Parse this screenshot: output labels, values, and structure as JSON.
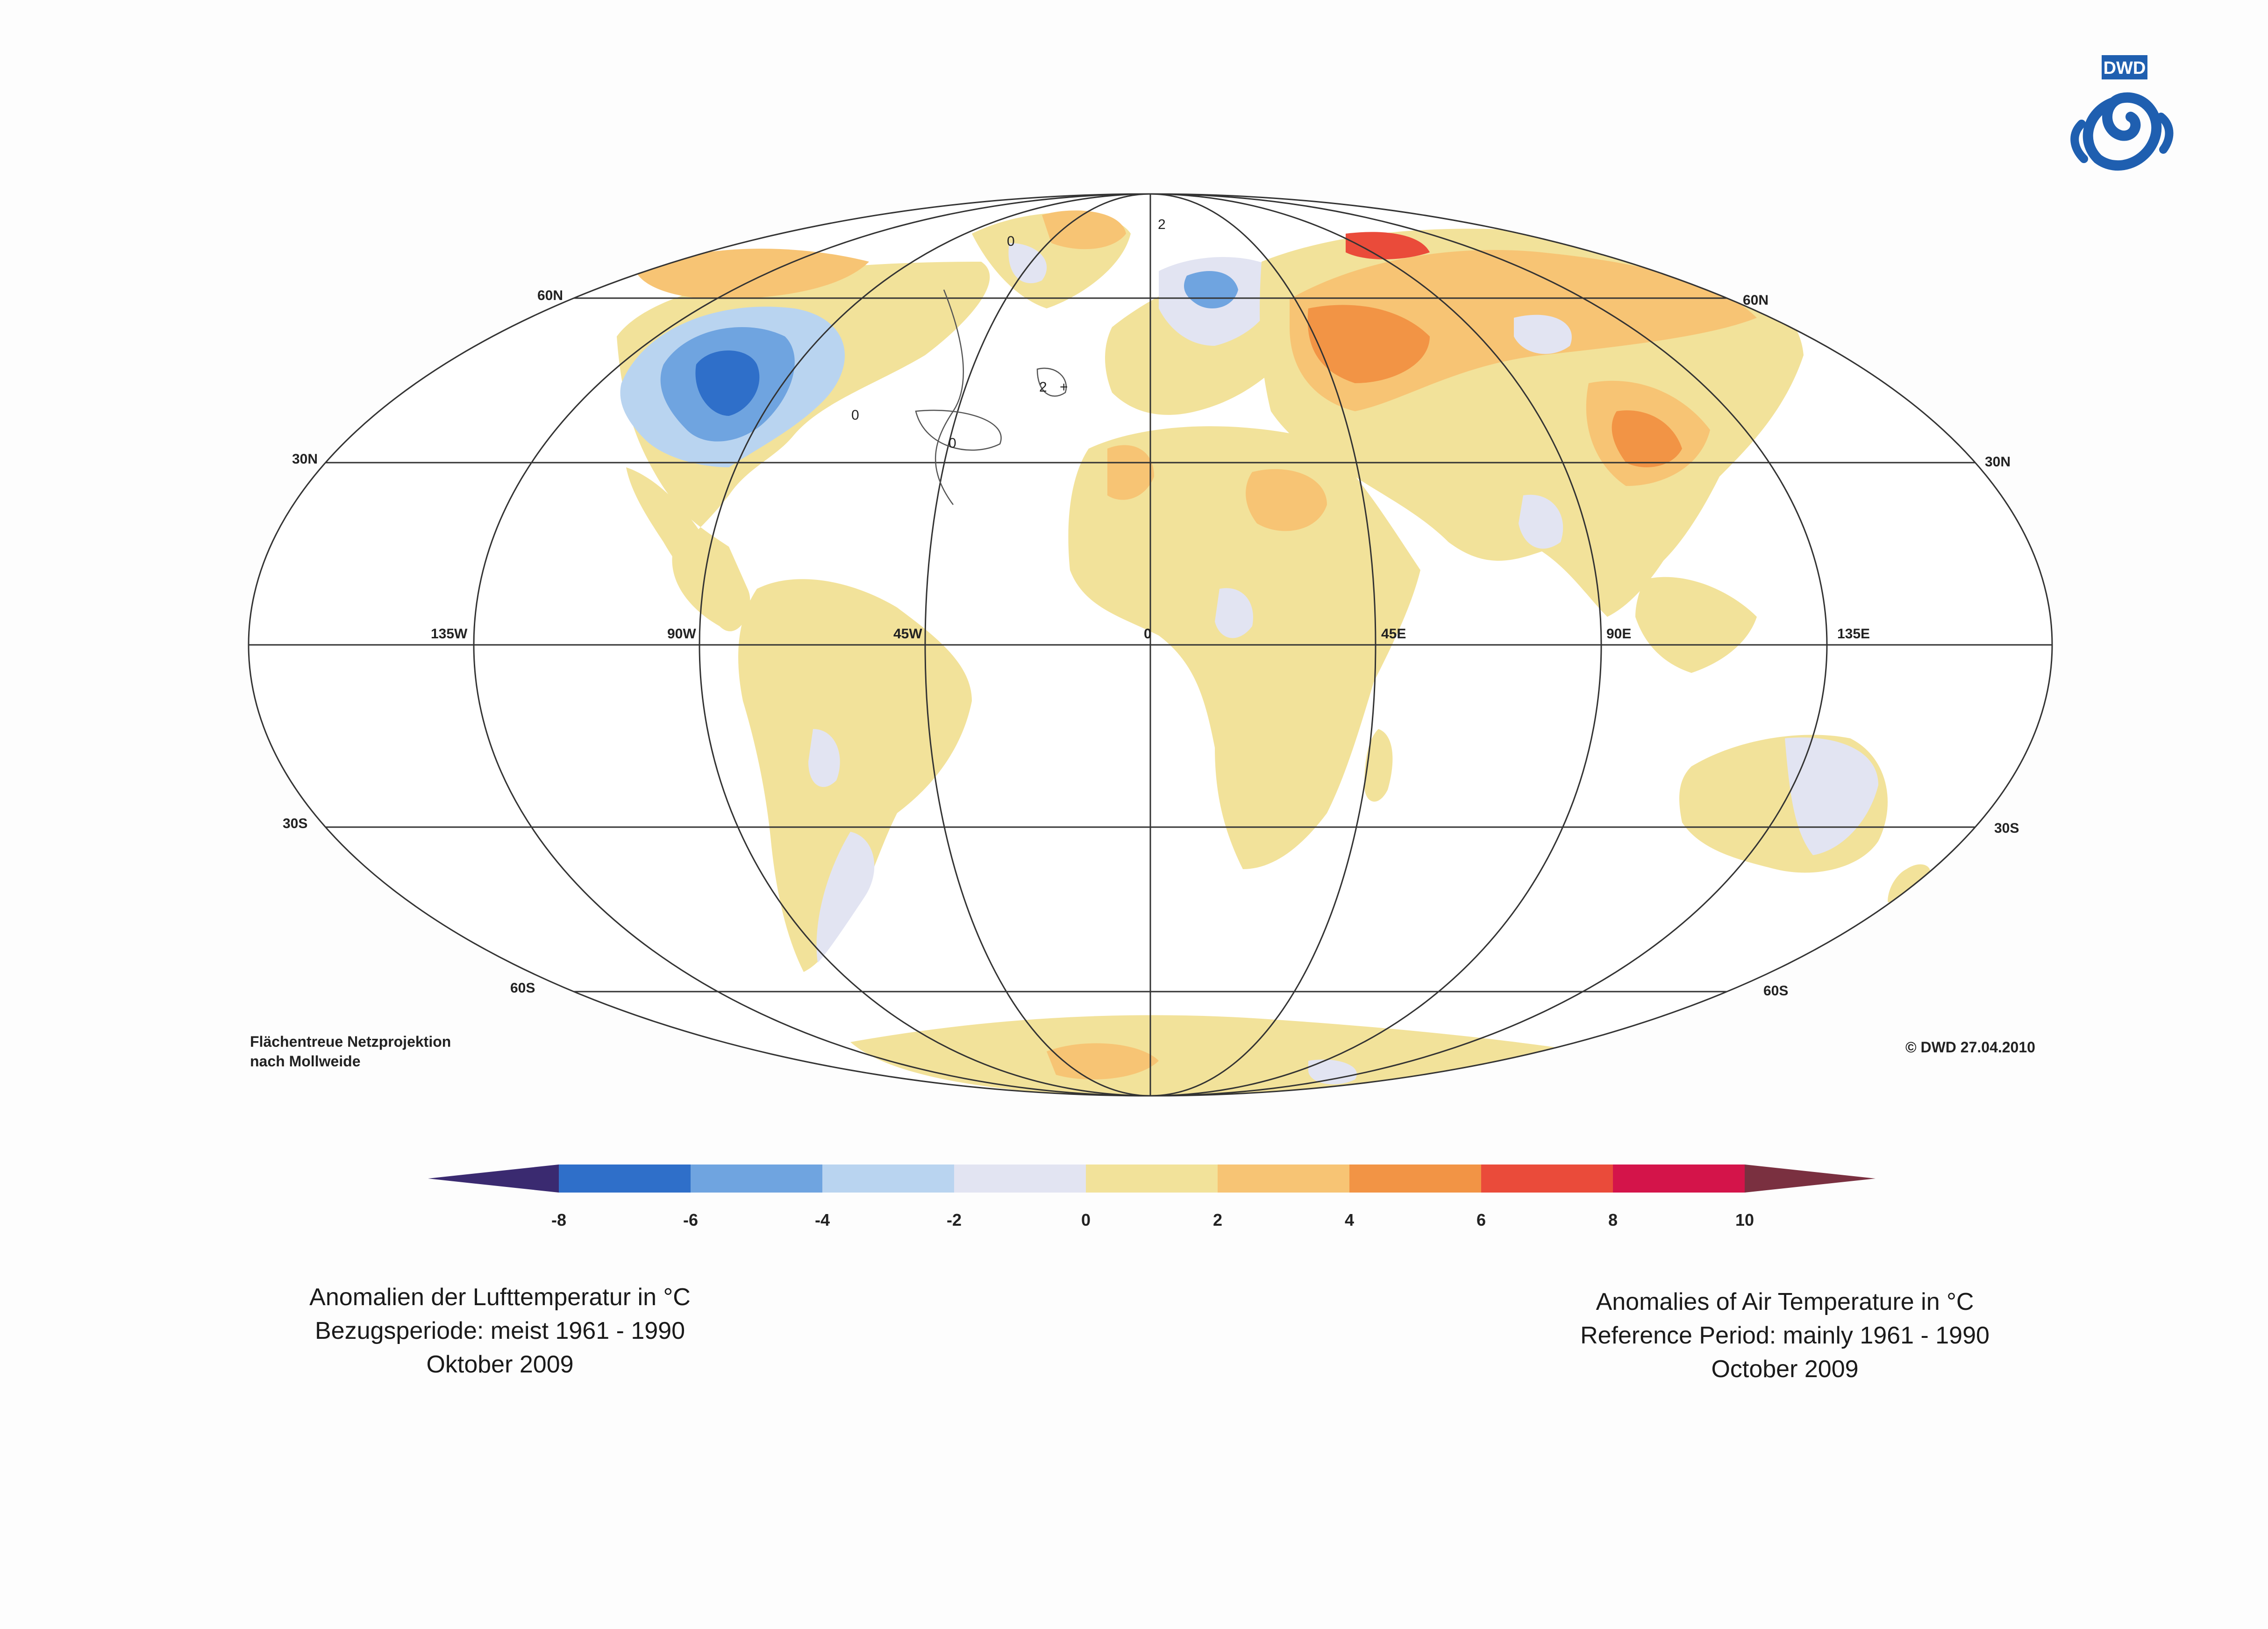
{
  "logo": {
    "text": "DWD",
    "color": "#1f5fb0"
  },
  "projection_note": [
    "Flächentreue Netzprojektion",
    "nach Mollweide"
  ],
  "copyright": "© DWD 27.04.2010",
  "grid_labels": {
    "lat_left": [
      "60N",
      "30N",
      "30S",
      "60S"
    ],
    "lat_right": [
      "60N",
      "30N",
      "30S",
      "60S"
    ],
    "lon": [
      "135W",
      "90W",
      "45W",
      "0",
      "45E",
      "90E",
      "135E"
    ]
  },
  "contour_labels": [
    "0",
    "2",
    "0",
    "0",
    "2",
    "+"
  ],
  "colorbar": {
    "ticks": [
      "-8",
      "-6",
      "-4",
      "-2",
      "0",
      "2",
      "4",
      "6",
      "8",
      "10"
    ],
    "colors": [
      "#3a2a70",
      "#2f6fc9",
      "#6fa4e0",
      "#b9d4f0",
      "#e2e4f2",
      "#f2e29a",
      "#f7c474",
      "#f29445",
      "#ea4b3a",
      "#d4144a",
      "#7a3040"
    ]
  },
  "caption_de": [
    "Anomalien der Lufttemperatur in °C",
    "Bezugsperiode: meist 1961 - 1990",
    "Oktober 2009"
  ],
  "caption_en": [
    "Anomalies of Air Temperature in °C",
    "Reference Period: mainly 1961 - 1990",
    "October 2009"
  ]
}
